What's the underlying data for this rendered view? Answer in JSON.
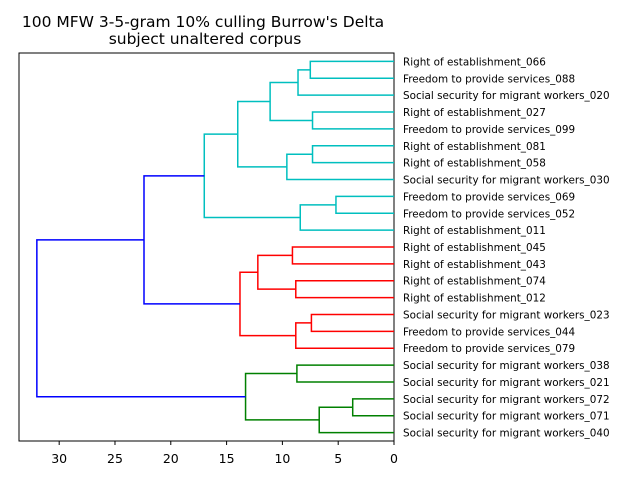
{
  "chart_data": {
    "type": "dendrogram",
    "title_lines": [
      "100 MFW 3-5-gram 10% culling Burrow's Delta",
      "subject unaltered corpus"
    ],
    "orientation": "left",
    "xlim": [
      33.6,
      0
    ],
    "xticks": [
      30,
      25,
      20,
      15,
      10,
      5,
      0
    ],
    "leaves": [
      "Right of establishment_066",
      "Freedom to provide services_088",
      "Social security for migrant workers_020",
      "Right of establishment_027",
      "Freedom to provide services_099",
      "Right of establishment_081",
      "Right of establishment_058",
      "Social security for migrant workers_030",
      "Freedom to provide services_069",
      "Freedom to provide services_052",
      "Right of establishment_011",
      "Right of establishment_045",
      "Right of establishment_043",
      "Right of establishment_074",
      "Right of establishment_012",
      "Social security for migrant workers_023",
      "Freedom to provide services_044",
      "Freedom to provide services_079",
      "Social security for migrant workers_038",
      "Social security for migrant workers_021",
      "Social security for migrant workers_072",
      "Social security for migrant workers_071",
      "Social security for migrant workers_040"
    ],
    "merges": [
      {
        "id": "n1",
        "children": [
          "L0",
          "L1"
        ],
        "height": 7.5,
        "color": "#00bfbf"
      },
      {
        "id": "n2",
        "children": [
          "n1",
          "L2"
        ],
        "height": 8.6,
        "color": "#00bfbf"
      },
      {
        "id": "n3",
        "children": [
          "L3",
          "L4"
        ],
        "height": 7.3,
        "color": "#00bfbf"
      },
      {
        "id": "n4",
        "children": [
          "n2",
          "n3"
        ],
        "height": 11.1,
        "color": "#00bfbf"
      },
      {
        "id": "n5",
        "children": [
          "L5",
          "L6"
        ],
        "height": 7.3,
        "color": "#00bfbf"
      },
      {
        "id": "n6",
        "children": [
          "n5",
          "L7"
        ],
        "height": 9.6,
        "color": "#00bfbf"
      },
      {
        "id": "n7",
        "children": [
          "n4",
          "n6"
        ],
        "height": 14.0,
        "color": "#00bfbf"
      },
      {
        "id": "n8",
        "children": [
          "L8",
          "L9"
        ],
        "height": 5.2,
        "color": "#00bfbf"
      },
      {
        "id": "n9",
        "children": [
          "n8",
          "L10"
        ],
        "height": 8.4,
        "color": "#00bfbf"
      },
      {
        "id": "n10",
        "children": [
          "n7",
          "n9"
        ],
        "height": 17.0,
        "color": "#00bfbf"
      },
      {
        "id": "n11",
        "children": [
          "L11",
          "L12"
        ],
        "height": 9.1,
        "color": "#ff0000"
      },
      {
        "id": "n12",
        "children": [
          "L13",
          "L14"
        ],
        "height": 8.8,
        "color": "#ff0000"
      },
      {
        "id": "n13",
        "children": [
          "n11",
          "n12"
        ],
        "height": 12.2,
        "color": "#ff0000"
      },
      {
        "id": "n14",
        "children": [
          "L15",
          "L16"
        ],
        "height": 7.4,
        "color": "#ff0000"
      },
      {
        "id": "n15",
        "children": [
          "n14",
          "L17"
        ],
        "height": 8.8,
        "color": "#ff0000"
      },
      {
        "id": "n16",
        "children": [
          "n13",
          "n15"
        ],
        "height": 13.8,
        "color": "#ff0000"
      },
      {
        "id": "n17",
        "children": [
          "n10",
          "n16"
        ],
        "height": 22.4,
        "color": "#0000ff"
      },
      {
        "id": "n18",
        "children": [
          "L18",
          "L19"
        ],
        "height": 8.7,
        "color": "#008000"
      },
      {
        "id": "n19",
        "children": [
          "L20",
          "L21"
        ],
        "height": 3.7,
        "color": "#008000"
      },
      {
        "id": "n20",
        "children": [
          "n19",
          "L22"
        ],
        "height": 6.7,
        "color": "#008000"
      },
      {
        "id": "n21",
        "children": [
          "n18",
          "n20"
        ],
        "height": 13.3,
        "color": "#008000"
      },
      {
        "id": "n22",
        "children": [
          "n17",
          "n21"
        ],
        "height": 32.0,
        "color": "#0000ff"
      }
    ]
  }
}
